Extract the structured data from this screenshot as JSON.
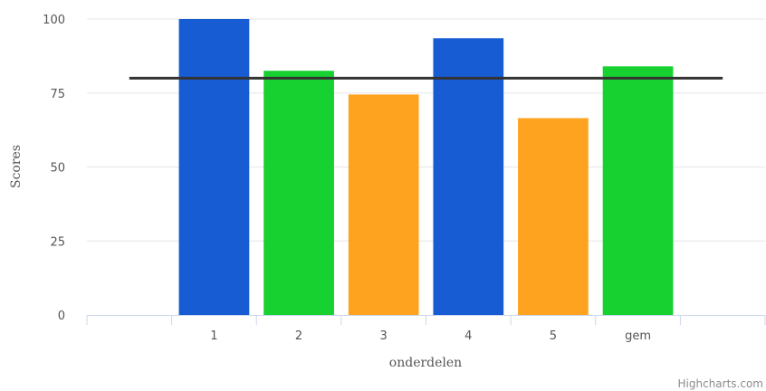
{
  "chart_data": {
    "type": "bar",
    "categories": [
      "",
      "1",
      "2",
      "3",
      "4",
      "5",
      "gem",
      ""
    ],
    "values": [
      null,
      100,
      82.5,
      74.5,
      93.5,
      66.5,
      84,
      null
    ],
    "bar_colors": [
      null,
      "#175cd3",
      "#16d12f",
      "#fea31f",
      "#175cd3",
      "#fea31f",
      "#16d12f",
      null
    ],
    "reference_line": {
      "value": 80,
      "color": "#333333"
    },
    "xlabel": "onderdelen",
    "ylabel": "Scores",
    "ylim": [
      0,
      100
    ],
    "yticks": [
      0,
      25,
      50,
      75,
      100
    ],
    "grid": true,
    "credits": "Highcharts.com",
    "colors": {
      "grid": "#e6e6e6",
      "axis_line": "#ccd6eb"
    }
  }
}
